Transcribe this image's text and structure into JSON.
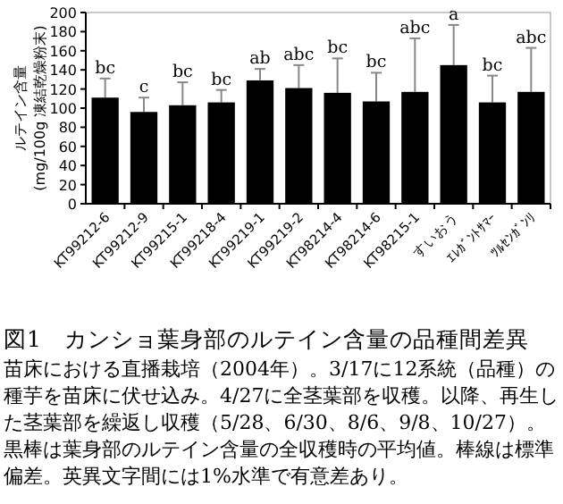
{
  "chart_data": {
    "type": "bar",
    "title": "図1　カンショ葉身部のルテイン含量の品種間差異",
    "ylabel": "ルテイン含量\n(mg/100g 凍結乾燥粉末)",
    "categories": [
      "KT99212-6",
      "KT99212-9",
      "KT99215-1",
      "KT99218-4",
      "KT99219-1",
      "KT99219-2",
      "KT98214-4",
      "KT98214-6",
      "KT98215-1",
      "すいおう",
      "ｴﾚｶﾞﾝﾄｻﾏｰ",
      "ﾂﾙｾﾝｶﾞﾝﾘ"
    ],
    "values": [
      111,
      96,
      103,
      106,
      129,
      121,
      116,
      107,
      117,
      145,
      106,
      117
    ],
    "errors": [
      20,
      15,
      24,
      13,
      12,
      24,
      36,
      30,
      56,
      42,
      28,
      46
    ],
    "color": "#000000",
    "ylim": [
      0,
      200
    ],
    "yticks": [
      0,
      20,
      40,
      60,
      80,
      100,
      120,
      140,
      160,
      180,
      200
    ],
    "grid": false,
    "annotations": [
      {
        "text": "bc",
        "x": "KT99212-6",
        "y": 131
      },
      {
        "text": "c",
        "x": "KT99212-9",
        "y": 111
      },
      {
        "text": "bc",
        "x": "KT99215-1",
        "y": 127
      },
      {
        "text": "bc",
        "x": "KT99218-4",
        "y": 119
      },
      {
        "text": "ab",
        "x": "KT99219-1",
        "y": 141
      },
      {
        "text": "abc",
        "x": "KT99219-2",
        "y": 145
      },
      {
        "text": "bc",
        "x": "KT98214-4",
        "y": 152
      },
      {
        "text": "bc",
        "x": "KT98214-6",
        "y": 137
      },
      {
        "text": "abc",
        "x": "KT98215-1",
        "y": 173
      },
      {
        "text": "a",
        "x": "すいおう",
        "y": 187
      },
      {
        "text": "bc",
        "x": "ｴﾚｶﾞﾝﾄｻﾏｰ",
        "y": 134
      },
      {
        "text": "abc",
        "x": "ﾂﾙｾﾝｶﾞﾝﾘ",
        "y": 163
      },
      "苗床における直播栽培（2004年）。3/17に12系統（品種）の種芋を苗床に伏せ込み。4/27に全茎葉部を収穫。以降、再生した茎葉部を繰返し収穫（5/28、6/30、8/6、9/8、10/27）。黒棒は葉身部のルテイン含量の全収穫時の平均値。棒線は標準偏差。英異文字間には1%水準で有意差あり。"
    ]
  }
}
